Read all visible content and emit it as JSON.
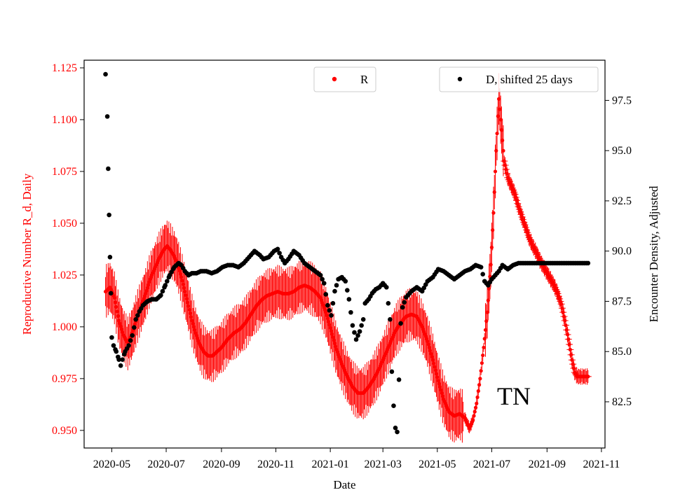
{
  "chart_data": {
    "type": "scatter",
    "xlabel": "Date",
    "ylabel_left": "Reproductive Number R_d, Daily",
    "ylabel_right": "Encounter Density, Adjusted",
    "x_ticks": [
      "2020-05",
      "2020-07",
      "2020-09",
      "2020-11",
      "2021-01",
      "2021-03",
      "2021-05",
      "2021-07",
      "2021-09",
      "2021-11"
    ],
    "x_tick_days": [
      0,
      61,
      123,
      184,
      245,
      304,
      365,
      426,
      488,
      549
    ],
    "xlim_days": [
      -31,
      553
    ],
    "y_left_ticks": [
      "0.950",
      "0.975",
      "1.000",
      "1.025",
      "1.050",
      "1.075",
      "1.100",
      "1.125"
    ],
    "y_left_lim": [
      0.9415,
      1.1287
    ],
    "y_right_ticks": [
      "82.5",
      "85.0",
      "87.5",
      "90.0",
      "92.5",
      "95.0",
      "97.5"
    ],
    "y_right_lim": [
      80.2,
      99.5
    ],
    "annotation": "TN",
    "colors": {
      "R": "#ff0000",
      "D": "#000000",
      "left_axis": "#ff0000",
      "right_axis": "#000000"
    },
    "series": [
      {
        "name": "R",
        "axis": "left",
        "color": "#ff0000",
        "marker": "dot_with_errorbars",
        "key_points": [
          [
            -7,
            1.017
          ],
          [
            -2,
            1.019
          ],
          [
            3,
            1.014
          ],
          [
            8,
            1.003
          ],
          [
            13,
            0.996
          ],
          [
            18,
            0.992
          ],
          [
            23,
            0.997
          ],
          [
            28,
            1.004
          ],
          [
            33,
            1.01
          ],
          [
            38,
            1.016
          ],
          [
            43,
            1.023
          ],
          [
            48,
            1.028
          ],
          [
            53,
            1.033
          ],
          [
            58,
            1.037
          ],
          [
            62,
            1.039
          ],
          [
            66,
            1.037
          ],
          [
            70,
            1.034
          ],
          [
            74,
            1.03
          ],
          [
            78,
            1.024
          ],
          [
            82,
            1.017
          ],
          [
            86,
            1.01
          ],
          [
            90,
            1.003
          ],
          [
            94,
            0.997
          ],
          [
            98,
            0.992
          ],
          [
            103,
            0.988
          ],
          [
            108,
            0.986
          ],
          [
            113,
            0.986
          ],
          [
            118,
            0.988
          ],
          [
            123,
            0.99
          ],
          [
            130,
            0.994
          ],
          [
            137,
            0.997
          ],
          [
            144,
            0.999
          ],
          [
            150,
            1.002
          ],
          [
            156,
            1.006
          ],
          [
            162,
            1.01
          ],
          [
            168,
            1.013
          ],
          [
            174,
            1.015
          ],
          [
            180,
            1.016
          ],
          [
            186,
            1.017
          ],
          [
            192,
            1.016
          ],
          [
            198,
            1.016
          ],
          [
            204,
            1.017
          ],
          [
            210,
            1.019
          ],
          [
            216,
            1.02
          ],
          [
            222,
            1.019
          ],
          [
            228,
            1.017
          ],
          [
            234,
            1.014
          ],
          [
            240,
            1.007
          ],
          [
            246,
            0.998
          ],
          [
            252,
            0.989
          ],
          [
            258,
            0.982
          ],
          [
            264,
            0.976
          ],
          [
            270,
            0.971
          ],
          [
            276,
            0.968
          ],
          [
            282,
            0.968
          ],
          [
            288,
            0.971
          ],
          [
            294,
            0.975
          ],
          [
            300,
            0.98
          ],
          [
            306,
            0.986
          ],
          [
            312,
            0.992
          ],
          [
            318,
            0.998
          ],
          [
            324,
            1.002
          ],
          [
            330,
            1.005
          ],
          [
            336,
            1.006
          ],
          [
            342,
            1.005
          ],
          [
            348,
            1.0
          ],
          [
            354,
            0.993
          ],
          [
            360,
            0.984
          ],
          [
            366,
            0.974
          ],
          [
            372,
            0.965
          ],
          [
            378,
            0.959
          ],
          [
            384,
            0.957
          ],
          [
            390,
            0.958
          ],
          [
            396,
            0.956
          ],
          [
            401,
            0.951
          ],
          [
            405,
            0.955
          ],
          [
            409,
            0.963
          ],
          [
            413,
            0.975
          ],
          [
            417,
            0.99
          ],
          [
            421,
            1.007
          ],
          [
            425,
            1.03
          ],
          [
            428,
            1.055
          ],
          [
            431,
            1.085
          ],
          [
            434,
            1.11
          ],
          [
            437,
            1.095
          ],
          [
            440,
            1.08
          ],
          [
            444,
            1.072
          ],
          [
            448,
            1.068
          ],
          [
            452,
            1.064
          ],
          [
            456,
            1.058
          ],
          [
            460,
            1.053
          ],
          [
            464,
            1.048
          ],
          [
            468,
            1.043
          ],
          [
            472,
            1.039
          ],
          [
            476,
            1.036
          ],
          [
            480,
            1.032
          ],
          [
            484,
            1.029
          ],
          [
            488,
            1.026
          ],
          [
            492,
            1.023
          ],
          [
            496,
            1.02
          ],
          [
            500,
            1.016
          ],
          [
            504,
            1.011
          ],
          [
            508,
            1.003
          ],
          [
            512,
            0.994
          ],
          [
            516,
            0.984
          ],
          [
            519,
            0.978
          ],
          [
            522,
            0.976
          ],
          [
            526,
            0.976
          ],
          [
            530,
            0.976
          ],
          [
            534,
            0.976
          ]
        ]
      },
      {
        "name": "D, shifted 25 days",
        "axis": "right",
        "color": "#000000",
        "marker": "dot",
        "key_points": [
          [
            -7,
            98.8
          ],
          [
            -5,
            96.7
          ],
          [
            -4,
            94.1
          ],
          [
            -3,
            91.8
          ],
          [
            -2,
            89.7
          ],
          [
            -1,
            87.9
          ],
          [
            0,
            85.7
          ],
          [
            2,
            85.3
          ],
          [
            5,
            85.0
          ],
          [
            8,
            84.6
          ],
          [
            10,
            84.3
          ],
          [
            12,
            84.6
          ],
          [
            15,
            85.0
          ],
          [
            19,
            85.3
          ],
          [
            23,
            85.8
          ],
          [
            27,
            86.6
          ],
          [
            31,
            87.0
          ],
          [
            35,
            87.3
          ],
          [
            40,
            87.5
          ],
          [
            45,
            87.6
          ],
          [
            50,
            87.6
          ],
          [
            55,
            87.8
          ],
          [
            60,
            88.3
          ],
          [
            65,
            88.8
          ],
          [
            70,
            89.2
          ],
          [
            75,
            89.4
          ],
          [
            78,
            89.3
          ],
          [
            82,
            89.0
          ],
          [
            86,
            88.8
          ],
          [
            90,
            88.9
          ],
          [
            95,
            88.9
          ],
          [
            100,
            89.0
          ],
          [
            106,
            89.0
          ],
          [
            112,
            88.9
          ],
          [
            118,
            89.0
          ],
          [
            124,
            89.2
          ],
          [
            130,
            89.3
          ],
          [
            136,
            89.3
          ],
          [
            142,
            89.2
          ],
          [
            148,
            89.4
          ],
          [
            154,
            89.7
          ],
          [
            160,
            90.0
          ],
          [
            166,
            89.8
          ],
          [
            170,
            89.6
          ],
          [
            176,
            89.7
          ],
          [
            182,
            90.0
          ],
          [
            186,
            90.1
          ],
          [
            190,
            89.7
          ],
          [
            194,
            89.4
          ],
          [
            198,
            89.6
          ],
          [
            204,
            90.0
          ],
          [
            210,
            89.8
          ],
          [
            216,
            89.4
          ],
          [
            222,
            89.2
          ],
          [
            228,
            89.0
          ],
          [
            234,
            88.8
          ],
          [
            238,
            88.4
          ],
          [
            242,
            87.3
          ],
          [
            246,
            86.8
          ],
          [
            250,
            88.0
          ],
          [
            254,
            88.6
          ],
          [
            258,
            88.7
          ],
          [
            262,
            88.5
          ],
          [
            266,
            87.6
          ],
          [
            270,
            86.3
          ],
          [
            274,
            85.6
          ],
          [
            278,
            86.0
          ],
          [
            282,
            86.6
          ],
          [
            284,
            87.4
          ],
          [
            288,
            87.6
          ],
          [
            292,
            87.9
          ],
          [
            296,
            88.1
          ],
          [
            300,
            88.2
          ],
          [
            304,
            88.4
          ],
          [
            308,
            88.2
          ],
          [
            312,
            86.6
          ],
          [
            314,
            84.0
          ],
          [
            316,
            82.3
          ],
          [
            318,
            81.2
          ],
          [
            320,
            81.0
          ],
          [
            322,
            83.6
          ],
          [
            324,
            86.4
          ],
          [
            326,
            87.2
          ],
          [
            330,
            87.7
          ],
          [
            336,
            88.0
          ],
          [
            342,
            88.2
          ],
          [
            348,
            88.0
          ],
          [
            354,
            88.5
          ],
          [
            360,
            88.7
          ],
          [
            366,
            89.1
          ],
          [
            372,
            89.0
          ],
          [
            378,
            88.8
          ],
          [
            384,
            88.6
          ],
          [
            390,
            88.8
          ],
          [
            396,
            89.0
          ],
          [
            402,
            89.1
          ],
          [
            408,
            89.3
          ],
          [
            414,
            89.2
          ],
          [
            418,
            88.5
          ],
          [
            422,
            88.3
          ],
          [
            426,
            88.6
          ],
          [
            430,
            88.8
          ],
          [
            434,
            89.0
          ],
          [
            438,
            89.3
          ],
          [
            444,
            89.1
          ],
          [
            450,
            89.3
          ],
          [
            456,
            89.4
          ],
          [
            466,
            89.4
          ],
          [
            476,
            89.4
          ],
          [
            486,
            89.4
          ],
          [
            496,
            89.4
          ],
          [
            506,
            89.4
          ],
          [
            516,
            89.4
          ],
          [
            526,
            89.4
          ],
          [
            534,
            89.4
          ]
        ]
      }
    ],
    "legend": [
      {
        "label": "R",
        "position": "upper-center"
      },
      {
        "label": "D, shifted 25 days",
        "position": "upper-right"
      }
    ]
  }
}
